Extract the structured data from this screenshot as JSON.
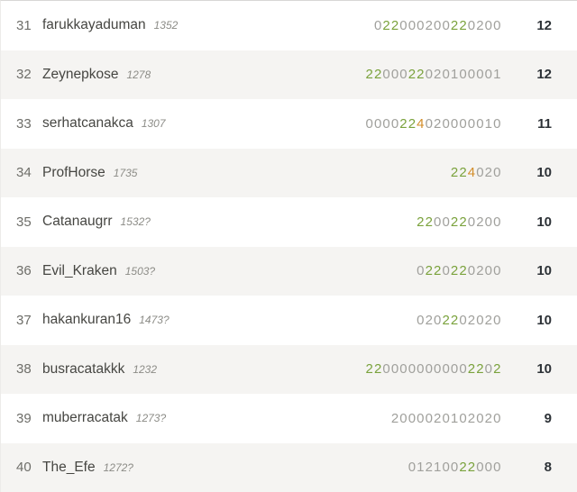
{
  "colors": {
    "win_green": "#7aa23c",
    "special_orange": "#d28c28",
    "neutral_gray": "#a0a09c",
    "alt_row_bg": "#f5f4f2",
    "total_dark": "#2d3237"
  },
  "table": {
    "rows": [
      {
        "rank": "31",
        "username": "farukkayaduman",
        "rating": "1352",
        "digits": "022000200220200",
        "mask": "-gg------gg----",
        "total": "12"
      },
      {
        "rank": "32",
        "username": "Zeynepkose",
        "rating": "1278",
        "digits": "2200022020100001",
        "mask": "gg---gg---------",
        "total": "12"
      },
      {
        "rank": "33",
        "username": "serhatcanakca",
        "rating": "1307",
        "digits": "0000224020000010",
        "mask": "----ggo---------",
        "total": "11"
      },
      {
        "rank": "34",
        "username": "ProfHorse",
        "rating": "1735",
        "digits": "224020",
        "mask": "ggo---",
        "total": "10"
      },
      {
        "rank": "35",
        "username": "Catanaugrr",
        "rating": "1532?",
        "digits": "2200220200",
        "mask": "gg--gg----",
        "total": "10"
      },
      {
        "rank": "36",
        "username": "Evil_Kraken",
        "rating": "1503?",
        "digits": "0220220200",
        "mask": "-gg-gg----",
        "total": "10"
      },
      {
        "rank": "37",
        "username": "hakankuran16",
        "rating": "1473?",
        "digits": "0202202020",
        "mask": "---gg-----",
        "total": "10"
      },
      {
        "rank": "38",
        "username": "busracatakkk",
        "rating": "1232",
        "digits": "2200000000002202",
        "mask": "gg----------gg-g",
        "total": "10"
      },
      {
        "rank": "39",
        "username": "muberracatak",
        "rating": "1273?",
        "digits": "2000020102020",
        "mask": "-------------",
        "total": "9"
      },
      {
        "rank": "40",
        "username": "The_Efe",
        "rating": "1272?",
        "digits": "01210022000",
        "mask": "------gg---",
        "total": "8"
      }
    ]
  }
}
